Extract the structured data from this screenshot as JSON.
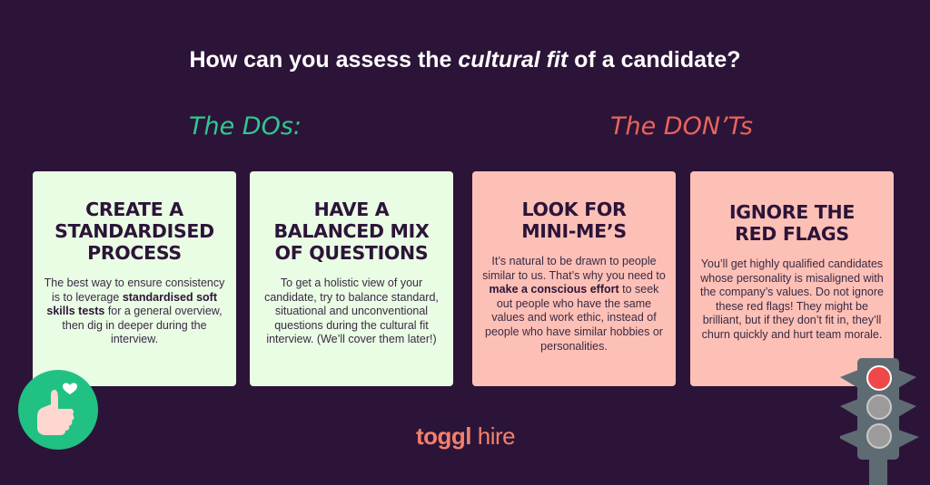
{
  "title": {
    "before": "How can you assess the ",
    "emphasis": "cultural fit",
    "after": " of a candidate?"
  },
  "sections": {
    "dos": "The DOs:",
    "donts": "The DON’Ts"
  },
  "colors": {
    "background": "#2c1438",
    "dos_accent": "#2fc88f",
    "donts_accent": "#e9645c",
    "dos_card": "#e9fce4",
    "donts_card": "#fdc0b6",
    "brand": "#f2806b"
  },
  "cards": [
    {
      "heading": [
        "CREATE A",
        "STANDARDISED",
        "PROCESS"
      ],
      "body": [
        {
          "text": "The best way to ensure consistency is to leverage ",
          "bold": false
        },
        {
          "text": "standardised soft skills tests",
          "bold": true
        },
        {
          "text": " for a general overview, then dig in deeper during the interview.",
          "bold": false
        }
      ]
    },
    {
      "heading": [
        "HAVE A",
        "BALANCED MIX",
        "OF QUESTIONS"
      ],
      "body": [
        {
          "text": "To get a holistic view of your candidate, try to balance standard, situational and unconventional questions during the cultural fit interview. (We’ll cover them later!)",
          "bold": false
        }
      ]
    },
    {
      "heading": [
        "LOOK FOR",
        "MINI-ME’S"
      ],
      "body": [
        {
          "text": "It’s natural to be drawn to people similar to us. That’s why you need to ",
          "bold": false
        },
        {
          "text": "make a conscious effort",
          "bold": true
        },
        {
          "text": " to seek out people who have the same values and work ethic, instead of people who have similar hobbies or personalities.",
          "bold": false
        }
      ]
    },
    {
      "heading": [
        "IGNORE THE",
        "RED FLAGS"
      ],
      "body": [
        {
          "text": "You’ll get highly qualified candidates whose personality is misaligned with the company’s values. Do not ignore these red flags! They might be brilliant, but if they don’t fit in, they’ll churn quickly and hurt team morale.",
          "bold": false
        }
      ]
    }
  ],
  "logo": {
    "brand": "toggl",
    "product": "hire"
  },
  "icons": {
    "thumbs_up": "thumbs-up-heart-icon",
    "traffic_light": "traffic-light-icon"
  }
}
